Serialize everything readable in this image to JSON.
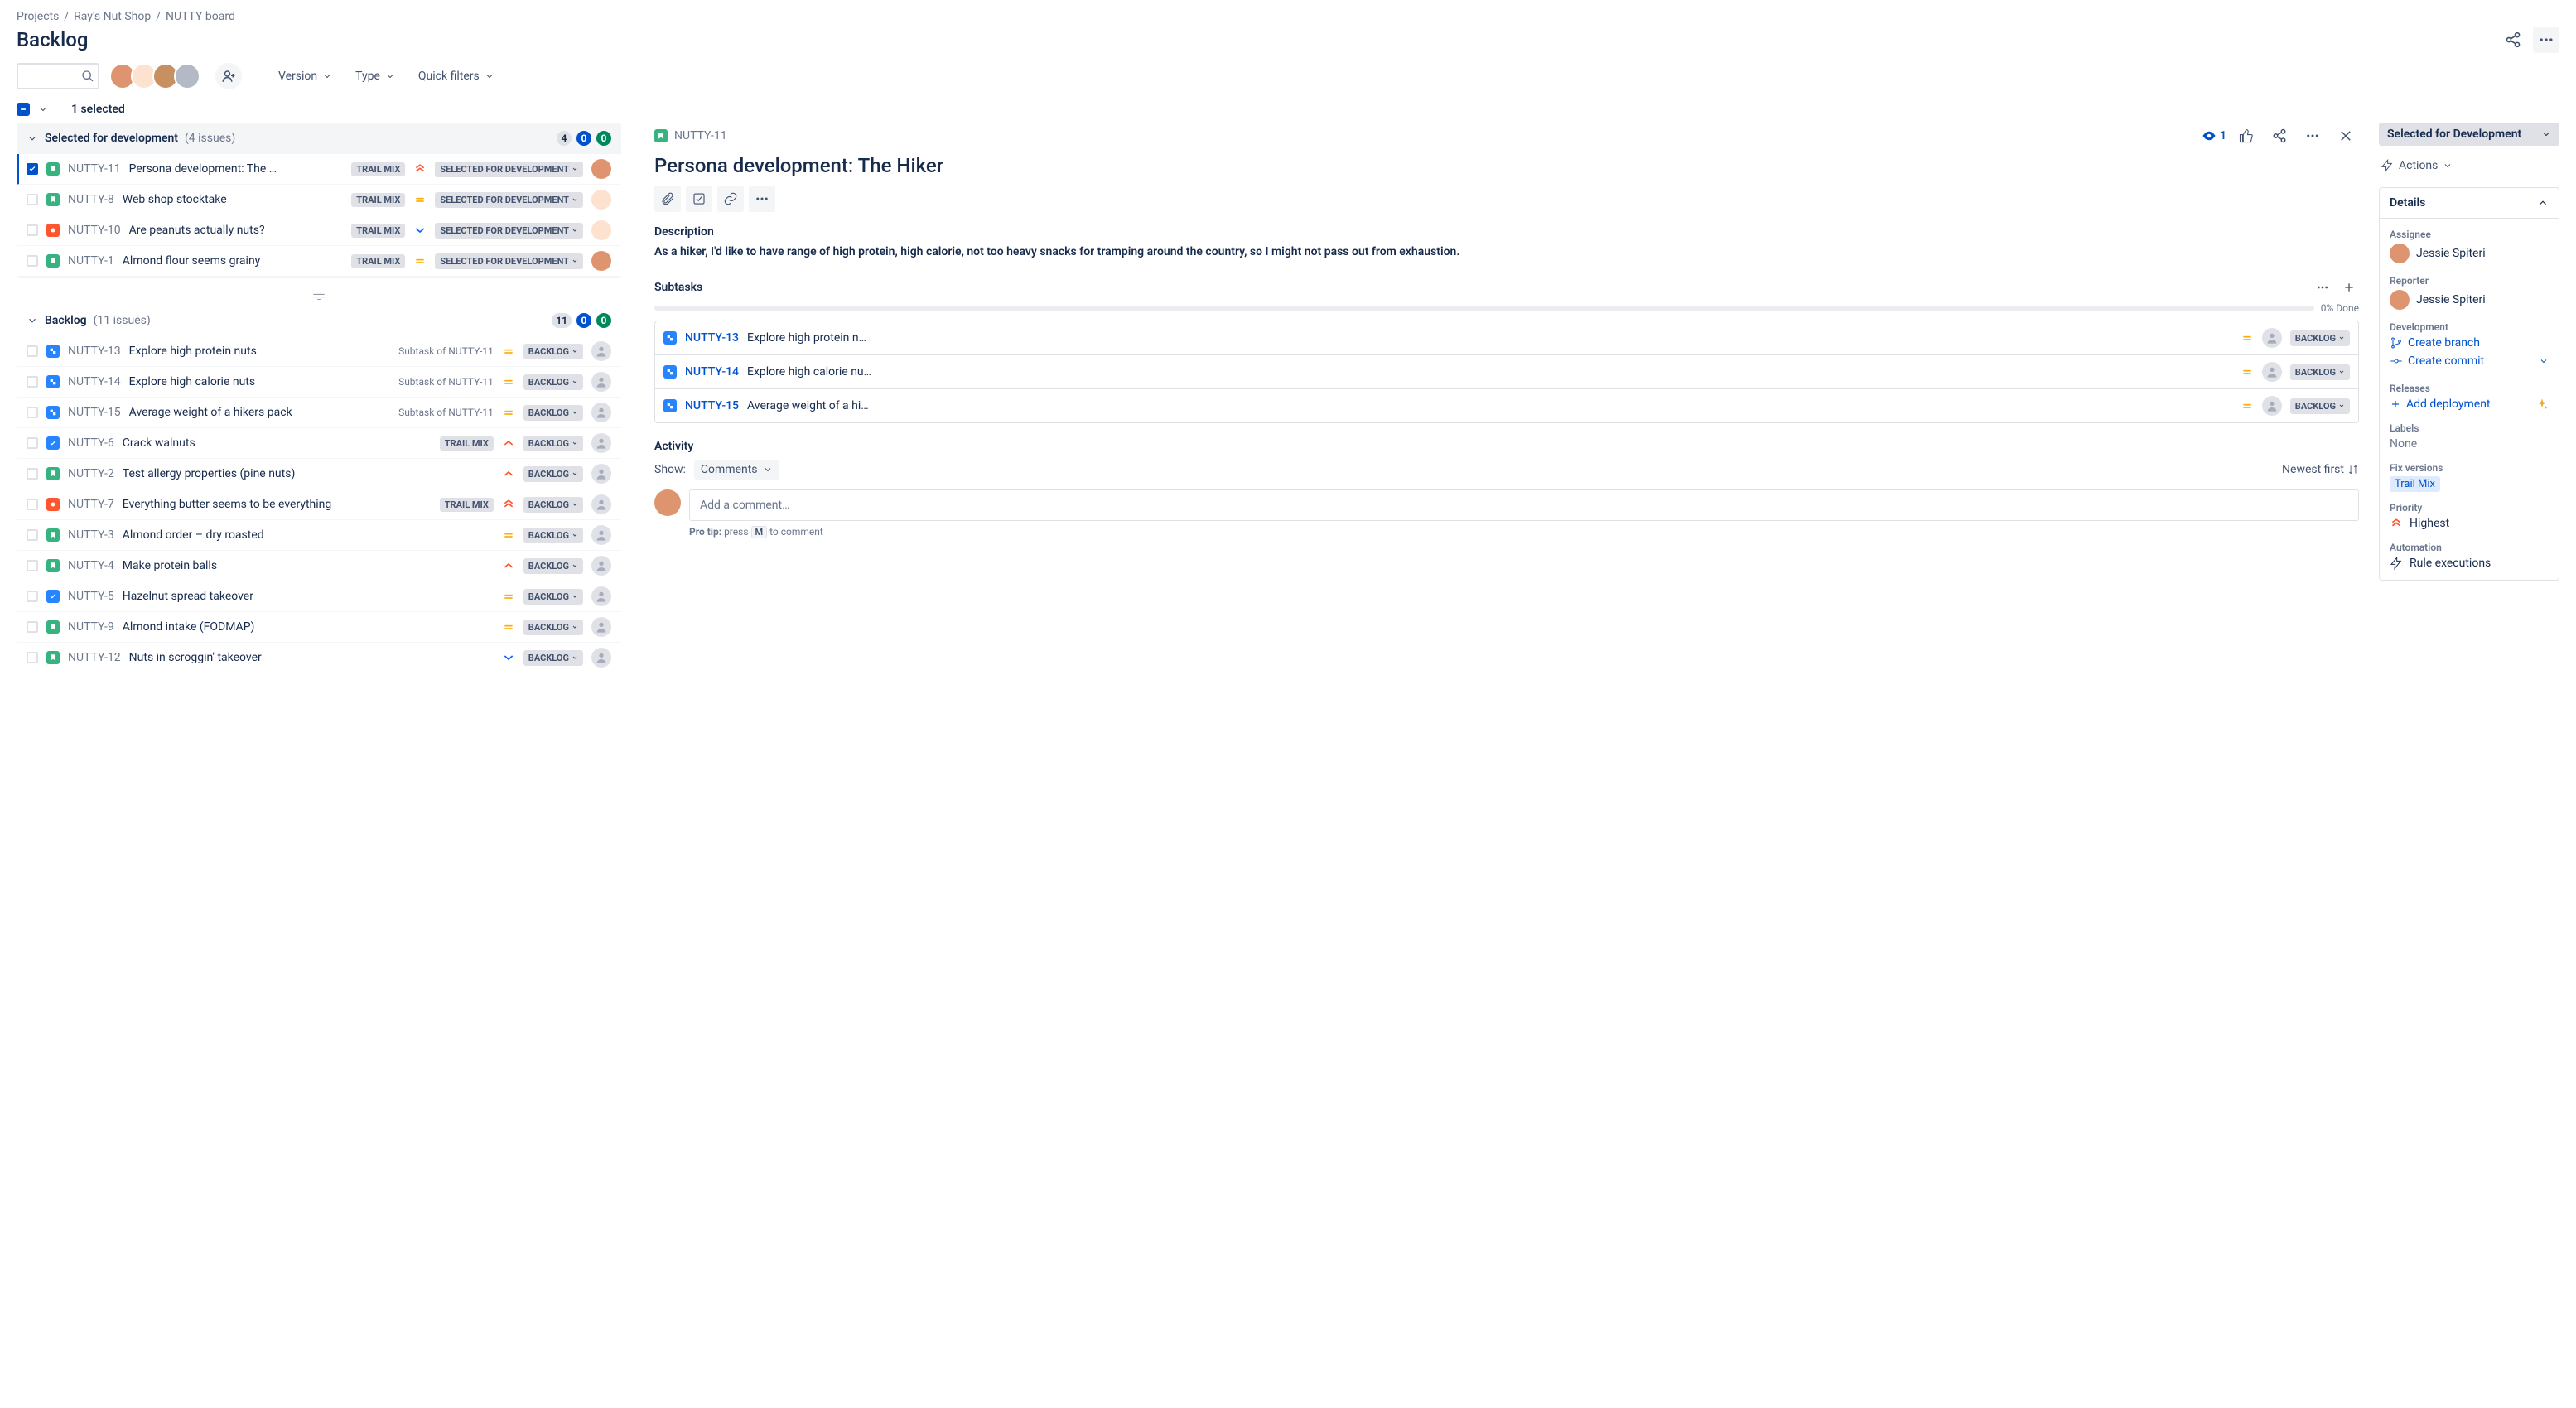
{
  "breadcrumbs": [
    "Projects",
    "Ray's Nut Shop",
    "NUTTY board"
  ],
  "pageTitle": "Backlog",
  "filters": {
    "version": "Version",
    "type": "Type",
    "quick": "Quick filters"
  },
  "selectionText": "1 selected",
  "sections": {
    "dev": {
      "title": "Selected for development",
      "count": "(4 issues)",
      "pills": {
        "gray": "4",
        "blue": "0",
        "green": "0"
      }
    },
    "backlog": {
      "title": "Backlog",
      "count": "(11 issues)",
      "pills": {
        "gray": "11",
        "blue": "0",
        "green": "0"
      }
    }
  },
  "devIssues": [
    {
      "key": "NUTTY-11",
      "type": "story",
      "summary": "Persona development: The …",
      "label": "TRAIL MIX",
      "priority": "highest",
      "status": "SELECTED FOR DEVELOPMENT",
      "assignee": "user1",
      "selected": true
    },
    {
      "key": "NUTTY-8",
      "type": "story",
      "summary": "Web shop stocktake",
      "label": "TRAIL MIX",
      "priority": "medium",
      "status": "SELECTED FOR DEVELOPMENT",
      "assignee": "user2",
      "selected": false
    },
    {
      "key": "NUTTY-10",
      "type": "bug",
      "summary": "Are peanuts actually nuts?",
      "label": "TRAIL MIX",
      "priority": "low",
      "status": "SELECTED FOR DEVELOPMENT",
      "assignee": "user2",
      "selected": false
    },
    {
      "key": "NUTTY-1",
      "type": "story",
      "summary": "Almond flour seems grainy",
      "label": "TRAIL MIX",
      "priority": "medium",
      "status": "SELECTED FOR DEVELOPMENT",
      "assignee": "user1",
      "selected": false
    }
  ],
  "backlogIssues": [
    {
      "key": "NUTTY-13",
      "type": "subtask",
      "summary": "Explore high protein nuts",
      "subtaskOf": "Subtask of NUTTY-11",
      "priority": "medium",
      "status": "BACKLOG",
      "assignee": ""
    },
    {
      "key": "NUTTY-14",
      "type": "subtask",
      "summary": "Explore high calorie nuts",
      "subtaskOf": "Subtask of NUTTY-11",
      "priority": "medium",
      "status": "BACKLOG",
      "assignee": ""
    },
    {
      "key": "NUTTY-15",
      "type": "subtask",
      "summary": "Average weight of a hikers pack",
      "subtaskOf": "Subtask of NUTTY-11",
      "priority": "medium",
      "status": "BACKLOG",
      "assignee": ""
    },
    {
      "key": "NUTTY-6",
      "type": "task",
      "summary": "Crack walnuts",
      "label": "TRAIL MIX",
      "priority": "high",
      "status": "BACKLOG",
      "assignee": ""
    },
    {
      "key": "NUTTY-2",
      "type": "story",
      "summary": "Test allergy properties (pine nuts)",
      "priority": "high",
      "status": "BACKLOG",
      "assignee": ""
    },
    {
      "key": "NUTTY-7",
      "type": "bug",
      "summary": "Everything butter seems to be everything",
      "label": "TRAIL MIX",
      "priority": "highest",
      "status": "BACKLOG",
      "assignee": ""
    },
    {
      "key": "NUTTY-3",
      "type": "story",
      "summary": "Almond order – dry roasted",
      "priority": "medium",
      "status": "BACKLOG",
      "assignee": ""
    },
    {
      "key": "NUTTY-4",
      "type": "story",
      "summary": "Make protein balls",
      "priority": "high",
      "status": "BACKLOG",
      "assignee": ""
    },
    {
      "key": "NUTTY-5",
      "type": "task",
      "summary": "Hazelnut spread takeover",
      "priority": "medium",
      "status": "BACKLOG",
      "assignee": ""
    },
    {
      "key": "NUTTY-9",
      "type": "story",
      "summary": "Almond intake (FODMAP)",
      "priority": "medium",
      "status": "BACKLOG",
      "assignee": ""
    },
    {
      "key": "NUTTY-12",
      "type": "story",
      "summary": "Nuts in scroggin' takeover",
      "priority": "low",
      "status": "BACKLOG",
      "assignee": ""
    }
  ],
  "detail": {
    "key": "NUTTY-11",
    "title": "Persona development: The Hiker",
    "watchCount": "1",
    "descriptionLabel": "Description",
    "description": "As a hiker, I'd like to have range of high protein, high calorie, not too heavy snacks for tramping around the country, so I might not pass out from exhaustion.",
    "subtasksLabel": "Subtasks",
    "progressText": "0% Done",
    "subtasks": [
      {
        "key": "NUTTY-13",
        "summary": "Explore high protein n…",
        "priority": "medium",
        "status": "BACKLOG"
      },
      {
        "key": "NUTTY-14",
        "summary": "Explore high calorie nu…",
        "priority": "medium",
        "status": "BACKLOG"
      },
      {
        "key": "NUTTY-15",
        "summary": "Average weight of a hi…",
        "priority": "medium",
        "status": "BACKLOG"
      }
    ],
    "activityLabel": "Activity",
    "showLabel": "Show:",
    "commentsChip": "Comments",
    "sortLabel": "Newest first",
    "commentPlaceholder": "Add a comment…",
    "proTip": {
      "prefix": "Pro tip:",
      "press": "press",
      "key": "M",
      "suffix": "to comment"
    },
    "status": "Selected for Development",
    "actionsLabel": "Actions",
    "detailsLabel": "Details",
    "fields": {
      "assigneeLabel": "Assignee",
      "assignee": "Jessie Spiteri",
      "reporterLabel": "Reporter",
      "reporter": "Jessie Spiteri",
      "developmentLabel": "Development",
      "createBranch": "Create branch",
      "createCommit": "Create commit",
      "releasesLabel": "Releases",
      "addDeployment": "Add deployment",
      "labelsLabel": "Labels",
      "labelsValue": "None",
      "fixVersionsLabel": "Fix versions",
      "fixVersionsValue": "Trail Mix",
      "priorityLabel": "Priority",
      "priorityValue": "Highest",
      "automationLabel": "Automation",
      "ruleExecutions": "Rule executions"
    }
  },
  "colors": {
    "avatars": [
      "#FFAB00",
      "#FFEBE6",
      "#8777D9",
      "#B3BAC5"
    ]
  }
}
